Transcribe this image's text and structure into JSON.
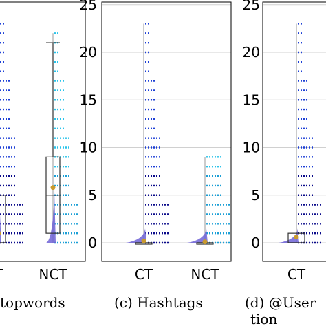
{
  "chart_data": [
    {
      "type": "box-violin-strip",
      "caption": "topwords",
      "categories": [
        "T",
        "NCT"
      ],
      "ylim": [
        -2,
        25
      ],
      "series": [
        {
          "category": "T",
          "box": {
            "q1": 0,
            "median": 0,
            "q3": 5
          },
          "mean": 1,
          "max": 23,
          "colors": [
            "#0a0a8a",
            "#1c3fd6"
          ]
        },
        {
          "category": "NCT",
          "box": {
            "q1": 1,
            "median": 5,
            "q3": 9,
            "whisker_high": 21
          },
          "mean": 5.8,
          "max": 22,
          "colors": [
            "#1a9fd6",
            "#29c3ea"
          ]
        }
      ]
    },
    {
      "type": "box-violin-strip",
      "caption": "(c)  Hashtags",
      "categories": [
        "CT",
        "NCT"
      ],
      "yticks": [
        0,
        5,
        10,
        15,
        20,
        25
      ],
      "ylim": [
        -2,
        25
      ],
      "grid": true,
      "series": [
        {
          "category": "CT",
          "box": {
            "q1": 0,
            "median": 0,
            "q3": 0
          },
          "mean": 0.2,
          "max": 23,
          "colors": [
            "#0a0a8a",
            "#1c3fd6"
          ]
        },
        {
          "category": "NCT",
          "box": {
            "q1": 0,
            "median": 0,
            "q3": 0
          },
          "mean": 0.1,
          "max": 9,
          "colors": [
            "#1a9fd6",
            "#29c3ea"
          ]
        }
      ]
    },
    {
      "type": "box-violin-strip",
      "caption": "(d)   @User",
      "caption_line2": "tion",
      "categories": [
        "CT"
      ],
      "yticks": [
        0,
        5,
        10,
        15,
        20,
        25
      ],
      "ylim": [
        -2,
        25
      ],
      "grid": true,
      "series": [
        {
          "category": "CT",
          "box": {
            "q1": 0,
            "median": 0,
            "q3": 1
          },
          "mean": 0.6,
          "max": 23,
          "colors": [
            "#0a0a8a",
            "#1c3fd6"
          ]
        }
      ]
    }
  ],
  "colors": {
    "violin": "#6e63d6",
    "mean_marker": "#c99a2e",
    "grid": "#d0d0d0",
    "whisker": "#9a9a9a"
  }
}
